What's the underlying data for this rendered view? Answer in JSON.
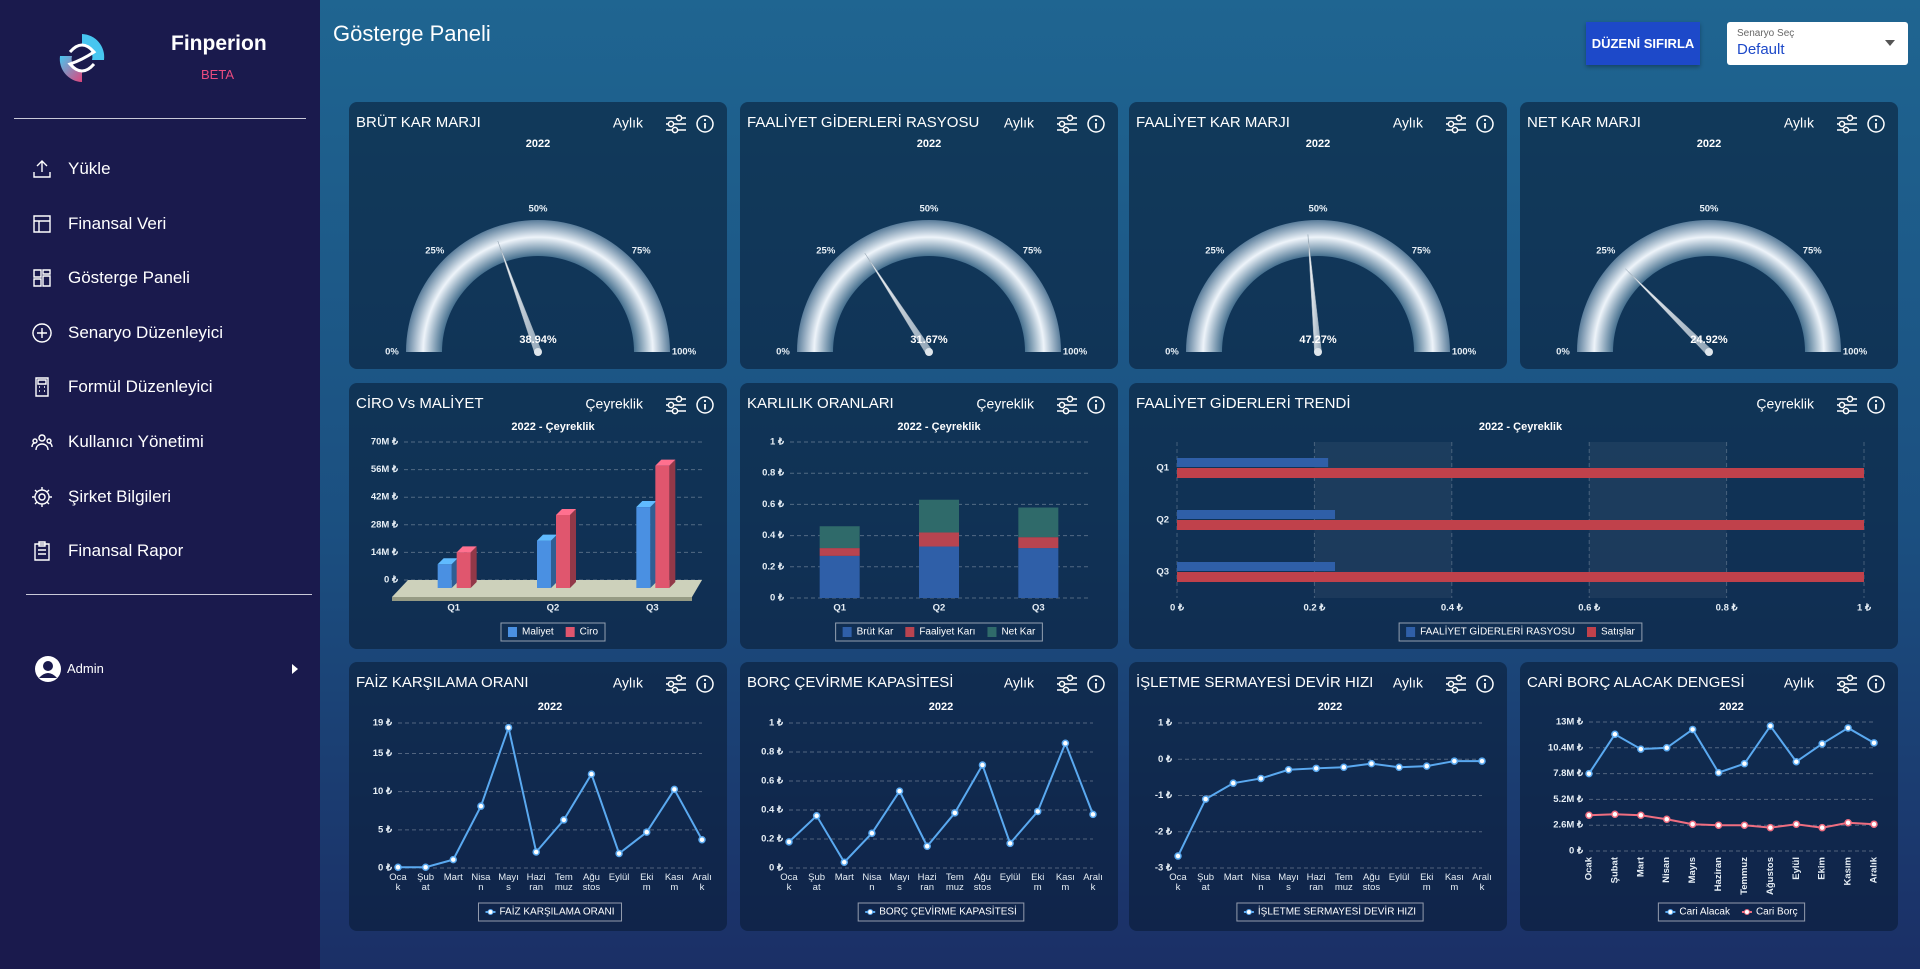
{
  "sidebar": {
    "brand": "Finperion",
    "badge": "BETA",
    "menu": [
      "Yükle",
      "Finansal Veri",
      "Gösterge Paneli",
      "Senaryo Düzenleyici",
      "Formül Düzenleyici",
      "Kullanıcı Yönetimi",
      "Şirket Bilgileri",
      "Finansal Rapor"
    ],
    "user": "Admin"
  },
  "header": {
    "title": "Gösterge Paneli",
    "reset_button": "DÜZENİ SIFIRLA",
    "scenario_label": "Senaryo Seç",
    "scenario_value": "Default"
  },
  "chart_data": [
    {
      "type": "gauge",
      "title": "BRÜT KAR MARJI",
      "period": "Aylık",
      "subtitle": "2022",
      "value": 38.94,
      "value_label": "38.94%",
      "ylim": [
        0,
        100
      ],
      "yticks": [
        {
          "value": 0,
          "label": "0%"
        },
        {
          "value": 25,
          "label": "25%"
        },
        {
          "value": 50,
          "label": "50%"
        },
        {
          "value": 75,
          "label": "75%"
        },
        {
          "value": 100,
          "label": "100%"
        }
      ]
    },
    {
      "type": "gauge",
      "title": "FAALİYET GİDERLERİ RASYOSU",
      "period": "Aylık",
      "subtitle": "2022",
      "value": 31.67,
      "value_label": "31.67%",
      "ylim": [
        0,
        100
      ],
      "yticks": [
        {
          "value": 0,
          "label": "0%"
        },
        {
          "value": 25,
          "label": "25%"
        },
        {
          "value": 50,
          "label": "50%"
        },
        {
          "value": 75,
          "label": "75%"
        },
        {
          "value": 100,
          "label": "100%"
        }
      ]
    },
    {
      "type": "gauge",
      "title": "FAALİYET KAR MARJI",
      "period": "Aylık",
      "subtitle": "2022",
      "value": 47.27,
      "value_label": "47.27%",
      "ylim": [
        0,
        100
      ],
      "yticks": [
        {
          "value": 0,
          "label": "0%"
        },
        {
          "value": 25,
          "label": "25%"
        },
        {
          "value": 50,
          "label": "50%"
        },
        {
          "value": 75,
          "label": "75%"
        },
        {
          "value": 100,
          "label": "100%"
        }
      ]
    },
    {
      "type": "gauge",
      "title": "NET KAR MARJI",
      "period": "Aylık",
      "subtitle": "2022",
      "value": 24.92,
      "value_label": "24.92%",
      "ylim": [
        0,
        100
      ],
      "yticks": [
        {
          "value": 0,
          "label": "0%"
        },
        {
          "value": 25,
          "label": "25%"
        },
        {
          "value": 50,
          "label": "50%"
        },
        {
          "value": 75,
          "label": "75%"
        },
        {
          "value": 100,
          "label": "100%"
        }
      ]
    },
    {
      "type": "bar3d",
      "title": "CİRO Vs MALİYET",
      "period": "Çeyreklik",
      "subtitle": "2022 - Çeyreklik",
      "categories": [
        "Q1",
        "Q2",
        "Q3"
      ],
      "series": [
        {
          "name": "Maliyet",
          "color": "#4a90e2",
          "values": [
            8000000,
            20000000,
            37000000
          ]
        },
        {
          "name": "Ciro",
          "color": "#e0566e",
          "values": [
            14000000,
            33000000,
            58000000
          ]
        }
      ],
      "ylim": [
        0,
        70000000
      ],
      "yticks": [
        {
          "value": 0,
          "label": "0 ₺"
        },
        {
          "value": 14000000,
          "label": "14M ₺"
        },
        {
          "value": 28000000,
          "label": "28M ₺"
        },
        {
          "value": 42000000,
          "label": "42M ₺"
        },
        {
          "value": 56000000,
          "label": "56M ₺"
        },
        {
          "value": 70000000,
          "label": "70M ₺"
        }
      ],
      "grid": true
    },
    {
      "type": "stacked_bar",
      "title": "KARLILIK ORANLARI",
      "period": "Çeyreklik",
      "subtitle": "2022 - Çeyreklik",
      "categories": [
        "Q1",
        "Q2",
        "Q3"
      ],
      "series": [
        {
          "name": "Brüt Kar",
          "color": "#2f5fa8",
          "values": [
            0.27,
            0.33,
            0.32
          ]
        },
        {
          "name": "Faaliyet Karı",
          "color": "#b84450",
          "values": [
            0.05,
            0.09,
            0.07
          ]
        },
        {
          "name": "Net Kar",
          "color": "#2f6a6a",
          "values": [
            0.14,
            0.21,
            0.19
          ]
        }
      ],
      "ylim": [
        0,
        1
      ],
      "yticks": [
        {
          "value": 0,
          "label": "0 ₺"
        },
        {
          "value": 0.2,
          "label": "0.2 ₺"
        },
        {
          "value": 0.4,
          "label": "0.4 ₺"
        },
        {
          "value": 0.6,
          "label": "0.6 ₺"
        },
        {
          "value": 0.8,
          "label": "0.8 ₺"
        },
        {
          "value": 1,
          "label": "1 ₺"
        }
      ],
      "grid": true
    },
    {
      "type": "hbar",
      "title": "FAALİYET GİDERLERİ TRENDİ",
      "period": "Çeyreklik",
      "subtitle": "2022 - Çeyreklik",
      "categories": [
        "Q1",
        "Q2",
        "Q3"
      ],
      "series": [
        {
          "name": "FAALİYET GİDERLERİ RASYOSU",
          "color": "#2f5fa8",
          "values": [
            0.22,
            0.23,
            0.23
          ]
        },
        {
          "name": "Satışlar",
          "color": "#c0414b",
          "values": [
            1,
            1,
            1
          ]
        }
      ],
      "xlim": [
        0,
        1
      ],
      "xticks": [
        {
          "value": 0,
          "label": "0 ₺"
        },
        {
          "value": 0.2,
          "label": "0.2 ₺"
        },
        {
          "value": 0.4,
          "label": "0.4 ₺"
        },
        {
          "value": 0.6,
          "label": "0.6 ₺"
        },
        {
          "value": 0.8,
          "label": "0.8 ₺"
        },
        {
          "value": 1,
          "label": "1 ₺"
        }
      ],
      "grid": true
    },
    {
      "type": "line",
      "title": "FAİZ KARŞILAMA ORANI",
      "period": "Aylık",
      "subtitle": "2022",
      "categories": [
        "Ocak",
        "Şubat",
        "Mart",
        "Nisan",
        "Mayıs",
        "Haziran",
        "Temmuz",
        "Ağustos",
        "Eylül",
        "Ekim",
        "Kasım",
        "Aralık"
      ],
      "series": [
        {
          "name": "FAİZ KARŞILAMA ORANI",
          "color": "#5aa9f0",
          "values": [
            0.1,
            0.1,
            1.1,
            8.1,
            18.4,
            2.1,
            6.3,
            12.3,
            1.9,
            4.7,
            10.3,
            3.7
          ]
        }
      ],
      "ylim": [
        0,
        19
      ],
      "yticks": [
        {
          "value": 0,
          "label": "0 ₺"
        },
        {
          "value": 5,
          "label": "5 ₺"
        },
        {
          "value": 10,
          "label": "10 ₺"
        },
        {
          "value": 15,
          "label": "15 ₺"
        },
        {
          "value": 19,
          "label": "19 ₺"
        }
      ],
      "grid": true
    },
    {
      "type": "line",
      "title": "BORÇ ÇEVİRME KAPASİTESİ",
      "period": "Aylık",
      "subtitle": "2022",
      "categories": [
        "Ocak",
        "Şubat",
        "Mart",
        "Nisan",
        "Mayıs",
        "Haziran",
        "Temmuz",
        "Ağustos",
        "Eylül",
        "Ekim",
        "Kasım",
        "Aralık"
      ],
      "series": [
        {
          "name": "BORÇ ÇEVİRME KAPASİTESİ",
          "color": "#5aa9f0",
          "values": [
            0.18,
            0.36,
            0.04,
            0.24,
            0.53,
            0.15,
            0.38,
            0.71,
            0.17,
            0.39,
            0.86,
            0.37
          ]
        }
      ],
      "ylim": [
        0,
        1
      ],
      "yticks": [
        {
          "value": 0,
          "label": "0 ₺"
        },
        {
          "value": 0.2,
          "label": "0.2 ₺"
        },
        {
          "value": 0.4,
          "label": "0.4 ₺"
        },
        {
          "value": 0.6,
          "label": "0.6 ₺"
        },
        {
          "value": 0.8,
          "label": "0.8 ₺"
        },
        {
          "value": 1,
          "label": "1 ₺"
        }
      ],
      "grid": true
    },
    {
      "type": "line",
      "title": "İŞLETME SERMAYESİ DEVİR HIZI",
      "period": "Aylık",
      "subtitle": "2022",
      "categories": [
        "Ocak",
        "Şubat",
        "Mart",
        "Nisan",
        "Mayıs",
        "Haziran",
        "Temmuz",
        "Ağustos",
        "Eylül",
        "Ekim",
        "Kasım",
        "Aralık"
      ],
      "series": [
        {
          "name": "İŞLETME SERMAYESİ DEVİR HIZI",
          "color": "#5aa9f0",
          "values": [
            -2.67,
            -1.1,
            -0.66,
            -0.53,
            -0.29,
            -0.25,
            -0.22,
            -0.12,
            -0.22,
            -0.19,
            -0.05,
            -0.05
          ]
        }
      ],
      "ylim": [
        -3,
        1
      ],
      "yticks": [
        {
          "value": -3,
          "label": "-3 ₺"
        },
        {
          "value": -2,
          "label": "-2 ₺"
        },
        {
          "value": -1,
          "label": "-1 ₺"
        },
        {
          "value": 0,
          "label": "0 ₺"
        },
        {
          "value": 1,
          "label": "1 ₺"
        }
      ],
      "grid": true
    },
    {
      "type": "line",
      "title": "CARİ BORÇ ALACAK DENGESİ",
      "period": "Aylık",
      "subtitle": "2022",
      "categories": [
        "Ocak",
        "Şubat",
        "Mart",
        "Nisan",
        "Mayıs",
        "Haziran",
        "Temmuz",
        "Ağustos",
        "Eylül",
        "Ekim",
        "Kasım",
        "Aralık"
      ],
      "series": [
        {
          "name": "Cari Alacak",
          "color": "#5aa9f0",
          "values": [
            7800000,
            11760000,
            10270000,
            10400000,
            12250000,
            7900000,
            8800000,
            12600000,
            9000000,
            10800000,
            12400000,
            10900000
          ]
        },
        {
          "name": "Cari Borç",
          "color": "#f06e80",
          "values": [
            3600000,
            3700000,
            3600000,
            3200000,
            2700000,
            2600000,
            2600000,
            2350000,
            2700000,
            2350000,
            2850000,
            2700000
          ]
        }
      ],
      "ylim": [
        0,
        13000000
      ],
      "yticks": [
        {
          "value": 0,
          "label": "0 ₺"
        },
        {
          "value": 2600000,
          "label": "2.6M ₺"
        },
        {
          "value": 5200000,
          "label": "5.2M ₺"
        },
        {
          "value": 7800000,
          "label": "7.8M ₺"
        },
        {
          "value": 10400000,
          "label": "10.4M ₺"
        },
        {
          "value": 13000000,
          "label": "13M ₺"
        }
      ],
      "grid": true,
      "rotated_labels": true
    }
  ]
}
